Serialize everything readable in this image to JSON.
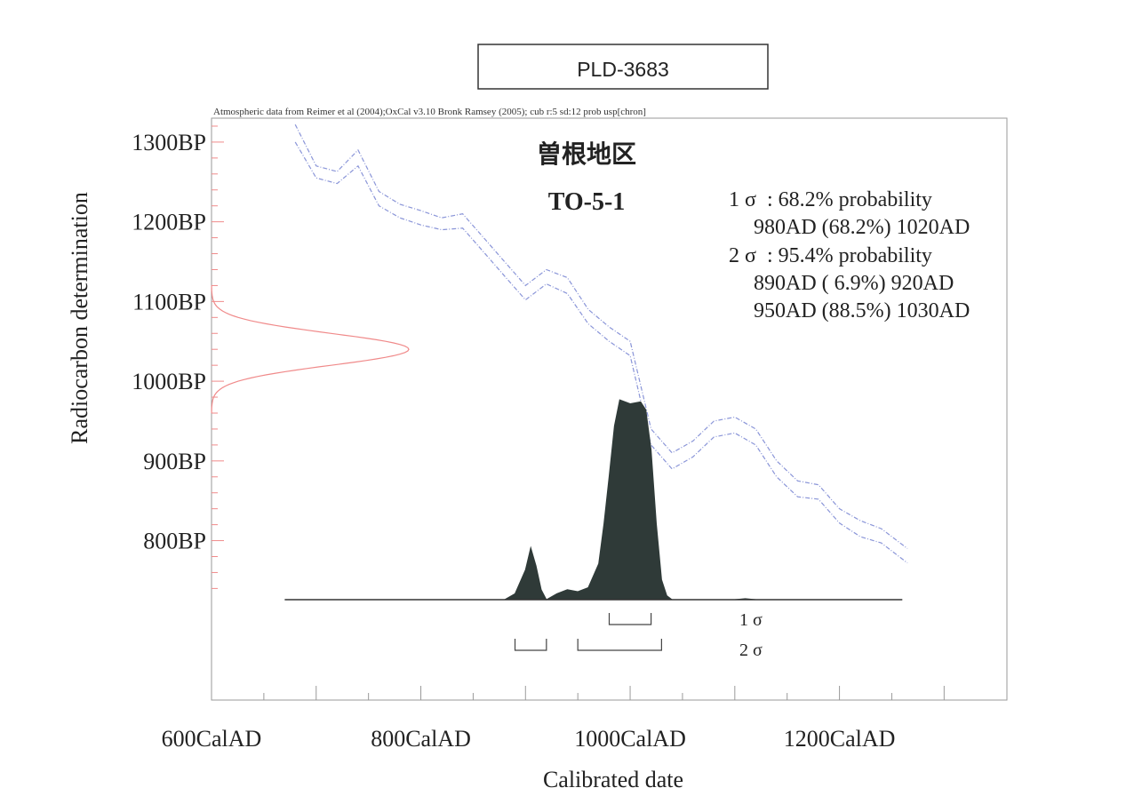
{
  "chart_data": {
    "type": "area",
    "sample_id": "PLD-3683",
    "subtitle": "Atmospheric data from Reimer et al (2004);OxCal v3.10 Bronk Ramsey (2005); cub r:5 sd:12 prob usp[chron]",
    "site_name": "曽根地区",
    "sample_label": "TO-5-1",
    "xlabel": "Calibrated date",
    "ylabel": "Radiocarbon determination",
    "xlim": [
      600,
      1360
    ],
    "ylim": [
      600,
      1330
    ],
    "x_tick_labels": [
      "600CalAD",
      "800CalAD",
      "1000CalAD",
      "1200CalAD"
    ],
    "x_tick_values": [
      600,
      800,
      1000,
      1200
    ],
    "y_tick_labels": [
      "1300BP",
      "1200BP",
      "1100BP",
      "1000BP",
      "900BP",
      "800BP"
    ],
    "y_tick_values": [
      1300,
      1200,
      1100,
      1000,
      900,
      800
    ],
    "legend_text": [
      "1 σ  : 68.2% probability",
      "980AD (68.2%) 1020AD",
      "2 σ  : 95.4% probability",
      "890AD ( 6.9%) 920AD",
      "950AD (88.5%) 1030AD"
    ],
    "sigma_labels": [
      "1 σ",
      "2 σ"
    ],
    "sigma1_ranges": [
      [
        980,
        1020
      ]
    ],
    "sigma2_ranges": [
      [
        890,
        920
      ],
      [
        950,
        1030
      ]
    ],
    "radiocarbon_measurement": {
      "mean_bp": 1040,
      "sd_bp": 20
    },
    "calibration_curve": {
      "x": [
        680,
        700,
        720,
        740,
        760,
        780,
        800,
        820,
        840,
        860,
        880,
        900,
        920,
        940,
        960,
        980,
        1000,
        1020,
        1040,
        1060,
        1080,
        1100,
        1120,
        1140,
        1160,
        1180,
        1200,
        1220,
        1240,
        1265
      ],
      "upper": [
        1322,
        1270,
        1263,
        1290,
        1238,
        1222,
        1214,
        1205,
        1210,
        1180,
        1150,
        1120,
        1140,
        1130,
        1090,
        1068,
        1050,
        940,
        910,
        925,
        950,
        955,
        940,
        900,
        875,
        870,
        840,
        825,
        815,
        790
      ],
      "lower": [
        1300,
        1255,
        1248,
        1270,
        1220,
        1205,
        1196,
        1190,
        1192,
        1162,
        1132,
        1102,
        1122,
        1110,
        1072,
        1050,
        1032,
        920,
        890,
        905,
        930,
        935,
        920,
        880,
        855,
        852,
        822,
        805,
        797,
        772
      ]
    },
    "probability_distribution": {
      "x": [
        670,
        880,
        890,
        900,
        905,
        910,
        915,
        920,
        930,
        940,
        950,
        960,
        970,
        975,
        980,
        985,
        990,
        1000,
        1010,
        1015,
        1020,
        1025,
        1030,
        1035,
        1040,
        1060,
        1100,
        1110,
        1120,
        1260
      ],
      "y": [
        0,
        0,
        0.03,
        0.15,
        0.26,
        0.17,
        0.05,
        0,
        0.03,
        0.05,
        0.04,
        0.06,
        0.18,
        0.38,
        0.62,
        0.87,
        1.0,
        0.98,
        0.99,
        0.95,
        0.75,
        0.38,
        0.1,
        0.02,
        0,
        0,
        0,
        0.005,
        0,
        0
      ]
    },
    "grid": false,
    "colors": {
      "curve": "#8a95d8",
      "measurement": "#f08a8a",
      "distribution": "#2f3a38",
      "axis": "#9a9a9a",
      "text": "#222222"
    }
  }
}
